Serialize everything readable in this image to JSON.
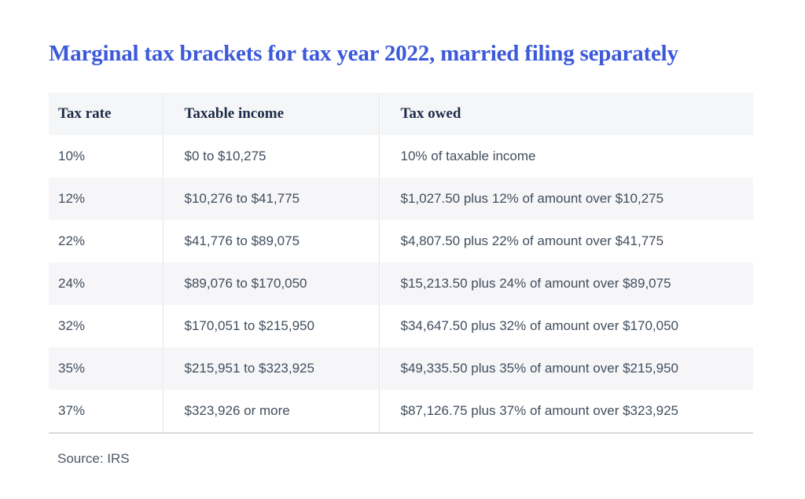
{
  "colors": {
    "title_blue": "#3b59d9",
    "header_navy": "#1e2c4a",
    "body_text": "#424e5d",
    "row_stripe": "#f6f6f8",
    "header_bg": "#f5f6f7",
    "bottom_border": "#d9dadc"
  },
  "chart_data": {
    "type": "table",
    "title": "Marginal tax brackets for tax year 2022, married filing separately",
    "columns": [
      "Tax rate",
      "Taxable income",
      "Tax owed"
    ],
    "rows": [
      [
        "10%",
        "$0 to $10,275",
        "10% of taxable income"
      ],
      [
        "12%",
        "$10,276 to $41,775",
        "$1,027.50 plus 12% of amount over $10,275"
      ],
      [
        "22%",
        "$41,776 to $89,075",
        "$4,807.50 plus 22% of amount over $41,775"
      ],
      [
        "24%",
        "$89,076 to $170,050",
        "$15,213.50 plus 24% of amount over $89,075"
      ],
      [
        "32%",
        "$170,051 to $215,950",
        "$34,647.50 plus 32% of amount over $170,050"
      ],
      [
        "35%",
        "$215,951 to $323,925",
        "$49,335.50 plus 35% of amount over $215,950"
      ],
      [
        "37%",
        "$323,926 or more",
        "$87,126.75 plus 37% of amount over $323,925"
      ]
    ],
    "source": "Source: IRS",
    "layout": {
      "stripes": "alternating rows, even rows shaded",
      "grid": "vertical column dividers + bottom border only"
    }
  }
}
